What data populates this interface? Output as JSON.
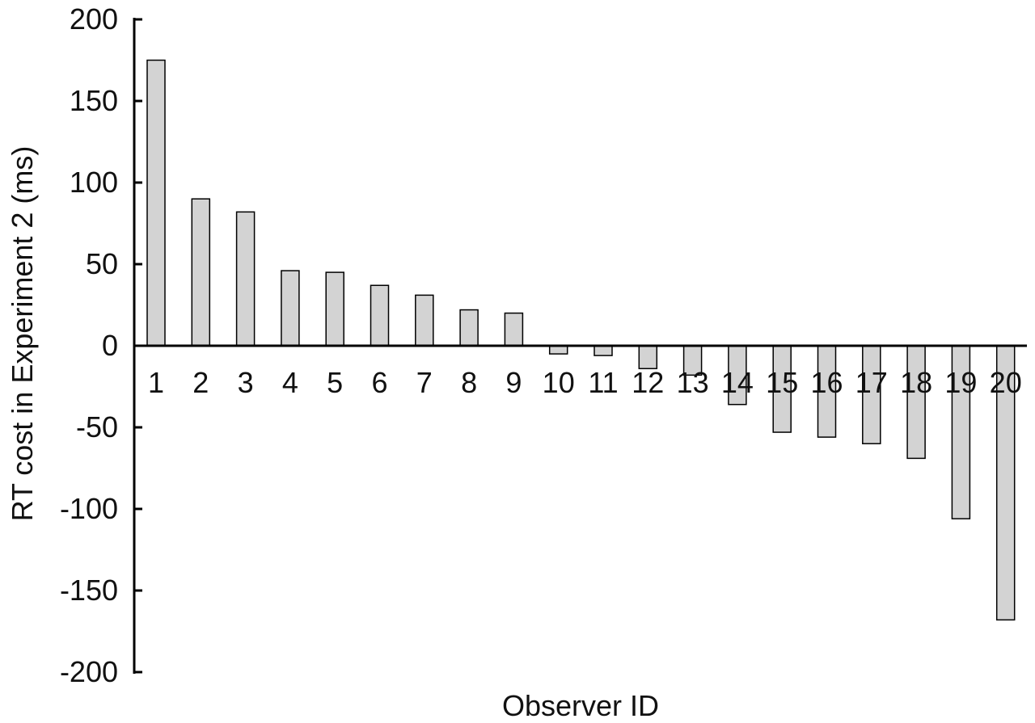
{
  "chart_data": {
    "type": "bar",
    "xlabel": "Observer ID",
    "ylabel": "RT cost in Experiment 2 (ms)",
    "ylim": [
      -200,
      200
    ],
    "yticks": [
      200,
      150,
      100,
      50,
      0,
      -50,
      -100,
      -150,
      -200
    ],
    "categories": [
      "1",
      "2",
      "3",
      "4",
      "5",
      "6",
      "7",
      "8",
      "9",
      "10",
      "11",
      "12",
      "13",
      "14",
      "15",
      "16",
      "17",
      "18",
      "19",
      "20"
    ],
    "values": [
      175,
      90,
      82,
      46,
      45,
      37,
      31,
      22,
      20,
      -5,
      -6,
      -14,
      -18,
      -36,
      -53,
      -56,
      -60,
      -69,
      -106,
      -168
    ],
    "bar_color": "#d3d3d3",
    "grid": false,
    "legend": "none"
  }
}
